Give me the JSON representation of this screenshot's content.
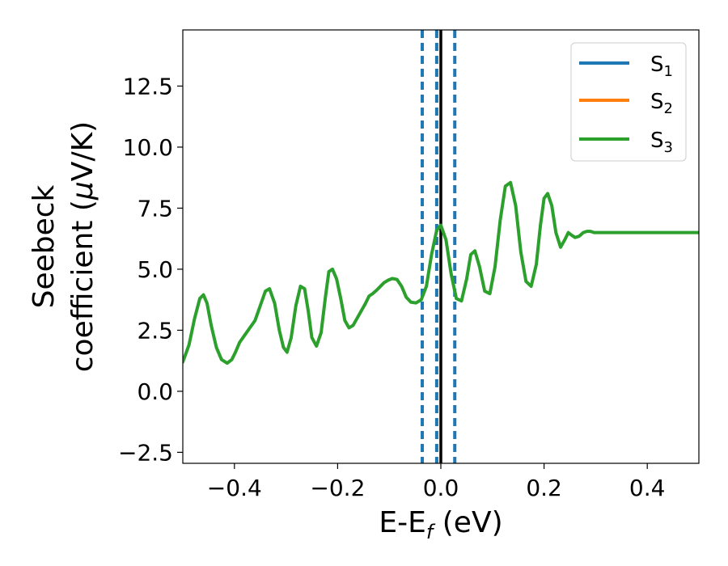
{
  "chart_data": {
    "type": "line",
    "xlabel": {
      "main": "E-E",
      "sub": "f",
      "tail": " (eV)"
    },
    "ylabel": {
      "line1": "Seebeck",
      "line2_pre": "coefficient  (",
      "line2_mu": "μ",
      "line2_post": "V/K)"
    },
    "xlim": [
      -0.5,
      0.5
    ],
    "ylim": [
      -2.95,
      14.8
    ],
    "xticks": [
      -0.4,
      -0.2,
      0.0,
      0.2,
      0.4
    ],
    "xtick_labels": [
      "−0.4",
      "−0.2",
      "0.0",
      "0.2",
      "0.4"
    ],
    "yticks": [
      -2.5,
      0.0,
      2.5,
      5.0,
      7.5,
      10.0,
      12.5
    ],
    "ytick_labels": [
      "−2.5",
      "0.0",
      "2.5",
      "5.0",
      "7.5",
      "10.0",
      "12.5"
    ],
    "grid": false,
    "legend_placement": "top-right",
    "vlines": [
      {
        "x": -0.036,
        "style": "dashed",
        "color": "#1f77b4"
      },
      {
        "x": -0.008,
        "style": "dashed",
        "color": "#1f77b4"
      },
      {
        "x": 0.027,
        "style": "dashed",
        "color": "#1f77b4"
      },
      {
        "x": 0.0,
        "style": "solid",
        "color": "#000000"
      }
    ],
    "series": [
      {
        "name": {
          "main": "S",
          "sub": "1"
        },
        "color": "#1f77b4",
        "x": [],
        "y": []
      },
      {
        "name": {
          "main": "S",
          "sub": "2"
        },
        "color": "#ff7f0e",
        "x": [],
        "y": []
      },
      {
        "name": {
          "main": "S",
          "sub": "3"
        },
        "color": "#2ca02c",
        "x": [
          -0.5,
          -0.488,
          -0.477,
          -0.467,
          -0.46,
          -0.453,
          -0.445,
          -0.435,
          -0.425,
          -0.414,
          -0.405,
          -0.398,
          -0.39,
          -0.38,
          -0.37,
          -0.36,
          -0.35,
          -0.34,
          -0.332,
          -0.322,
          -0.313,
          -0.305,
          -0.298,
          -0.29,
          -0.281,
          -0.272,
          -0.264,
          -0.257,
          -0.25,
          -0.241,
          -0.232,
          -0.224,
          -0.217,
          -0.21,
          -0.202,
          -0.194,
          -0.186,
          -0.178,
          -0.17,
          -0.162,
          -0.154,
          -0.146,
          -0.139,
          -0.132,
          -0.124,
          -0.117,
          -0.11,
          -0.102,
          -0.094,
          -0.085,
          -0.076,
          -0.067,
          -0.058,
          -0.048,
          -0.038,
          -0.028,
          -0.018,
          -0.008,
          0.0,
          0.01,
          0.02,
          0.03,
          0.04,
          0.05,
          0.058,
          0.066,
          0.075,
          0.085,
          0.095,
          0.105,
          0.115,
          0.125,
          0.135,
          0.145,
          0.155,
          0.165,
          0.175,
          0.185,
          0.193,
          0.2,
          0.207,
          0.215,
          0.223,
          0.232,
          0.24,
          0.247,
          0.253,
          0.26,
          0.268,
          0.276,
          0.283,
          0.29,
          0.297,
          0.305,
          0.313,
          0.32,
          0.327,
          0.335,
          0.343,
          0.35,
          0.357,
          0.364,
          0.37,
          0.376,
          0.382,
          0.388,
          0.395,
          0.402,
          0.41,
          0.418,
          0.425,
          0.433,
          0.44,
          0.448,
          0.456,
          0.464,
          0.47,
          0.477,
          0.484,
          0.492,
          0.5
        ],
        "y": [
          1.2,
          1.9,
          3.0,
          3.8,
          3.95,
          3.6,
          2.7,
          1.8,
          1.3,
          1.15,
          1.3,
          1.6,
          2.0,
          2.3,
          2.6,
          2.9,
          3.5,
          4.1,
          4.2,
          3.6,
          2.5,
          1.8,
          1.6,
          2.2,
          3.5,
          4.3,
          4.2,
          3.3,
          2.2,
          1.85,
          2.4,
          3.8,
          4.9,
          5.0,
          4.6,
          3.8,
          2.9,
          2.6,
          2.7,
          3.0,
          3.3,
          3.6,
          3.9,
          4.0,
          4.15,
          4.3,
          4.45,
          4.55,
          4.62,
          4.58,
          4.3,
          3.85,
          3.65,
          3.62,
          3.75,
          4.3,
          5.6,
          6.6,
          6.8,
          6.2,
          4.8,
          3.8,
          3.7,
          4.6,
          5.6,
          5.75,
          5.1,
          4.1,
          4.0,
          5.1,
          7.0,
          8.4,
          8.55,
          7.6,
          5.7,
          4.5,
          4.3,
          5.2,
          6.8,
          7.9,
          8.1,
          7.6,
          6.5,
          5.9,
          6.2,
          6.5,
          6.4,
          6.3,
          6.35,
          6.5,
          6.55,
          6.55,
          6.5,
          6.5,
          6.5,
          6.5,
          6.5,
          6.5,
          6.5,
          6.5,
          6.5,
          6.5,
          6.5,
          6.5,
          6.5,
          6.5,
          6.5,
          6.5,
          6.5,
          6.5,
          6.5,
          6.5,
          6.5,
          6.5,
          6.5,
          6.5,
          6.5,
          6.5,
          6.5,
          6.5,
          6.5
        ]
      }
    ]
  }
}
